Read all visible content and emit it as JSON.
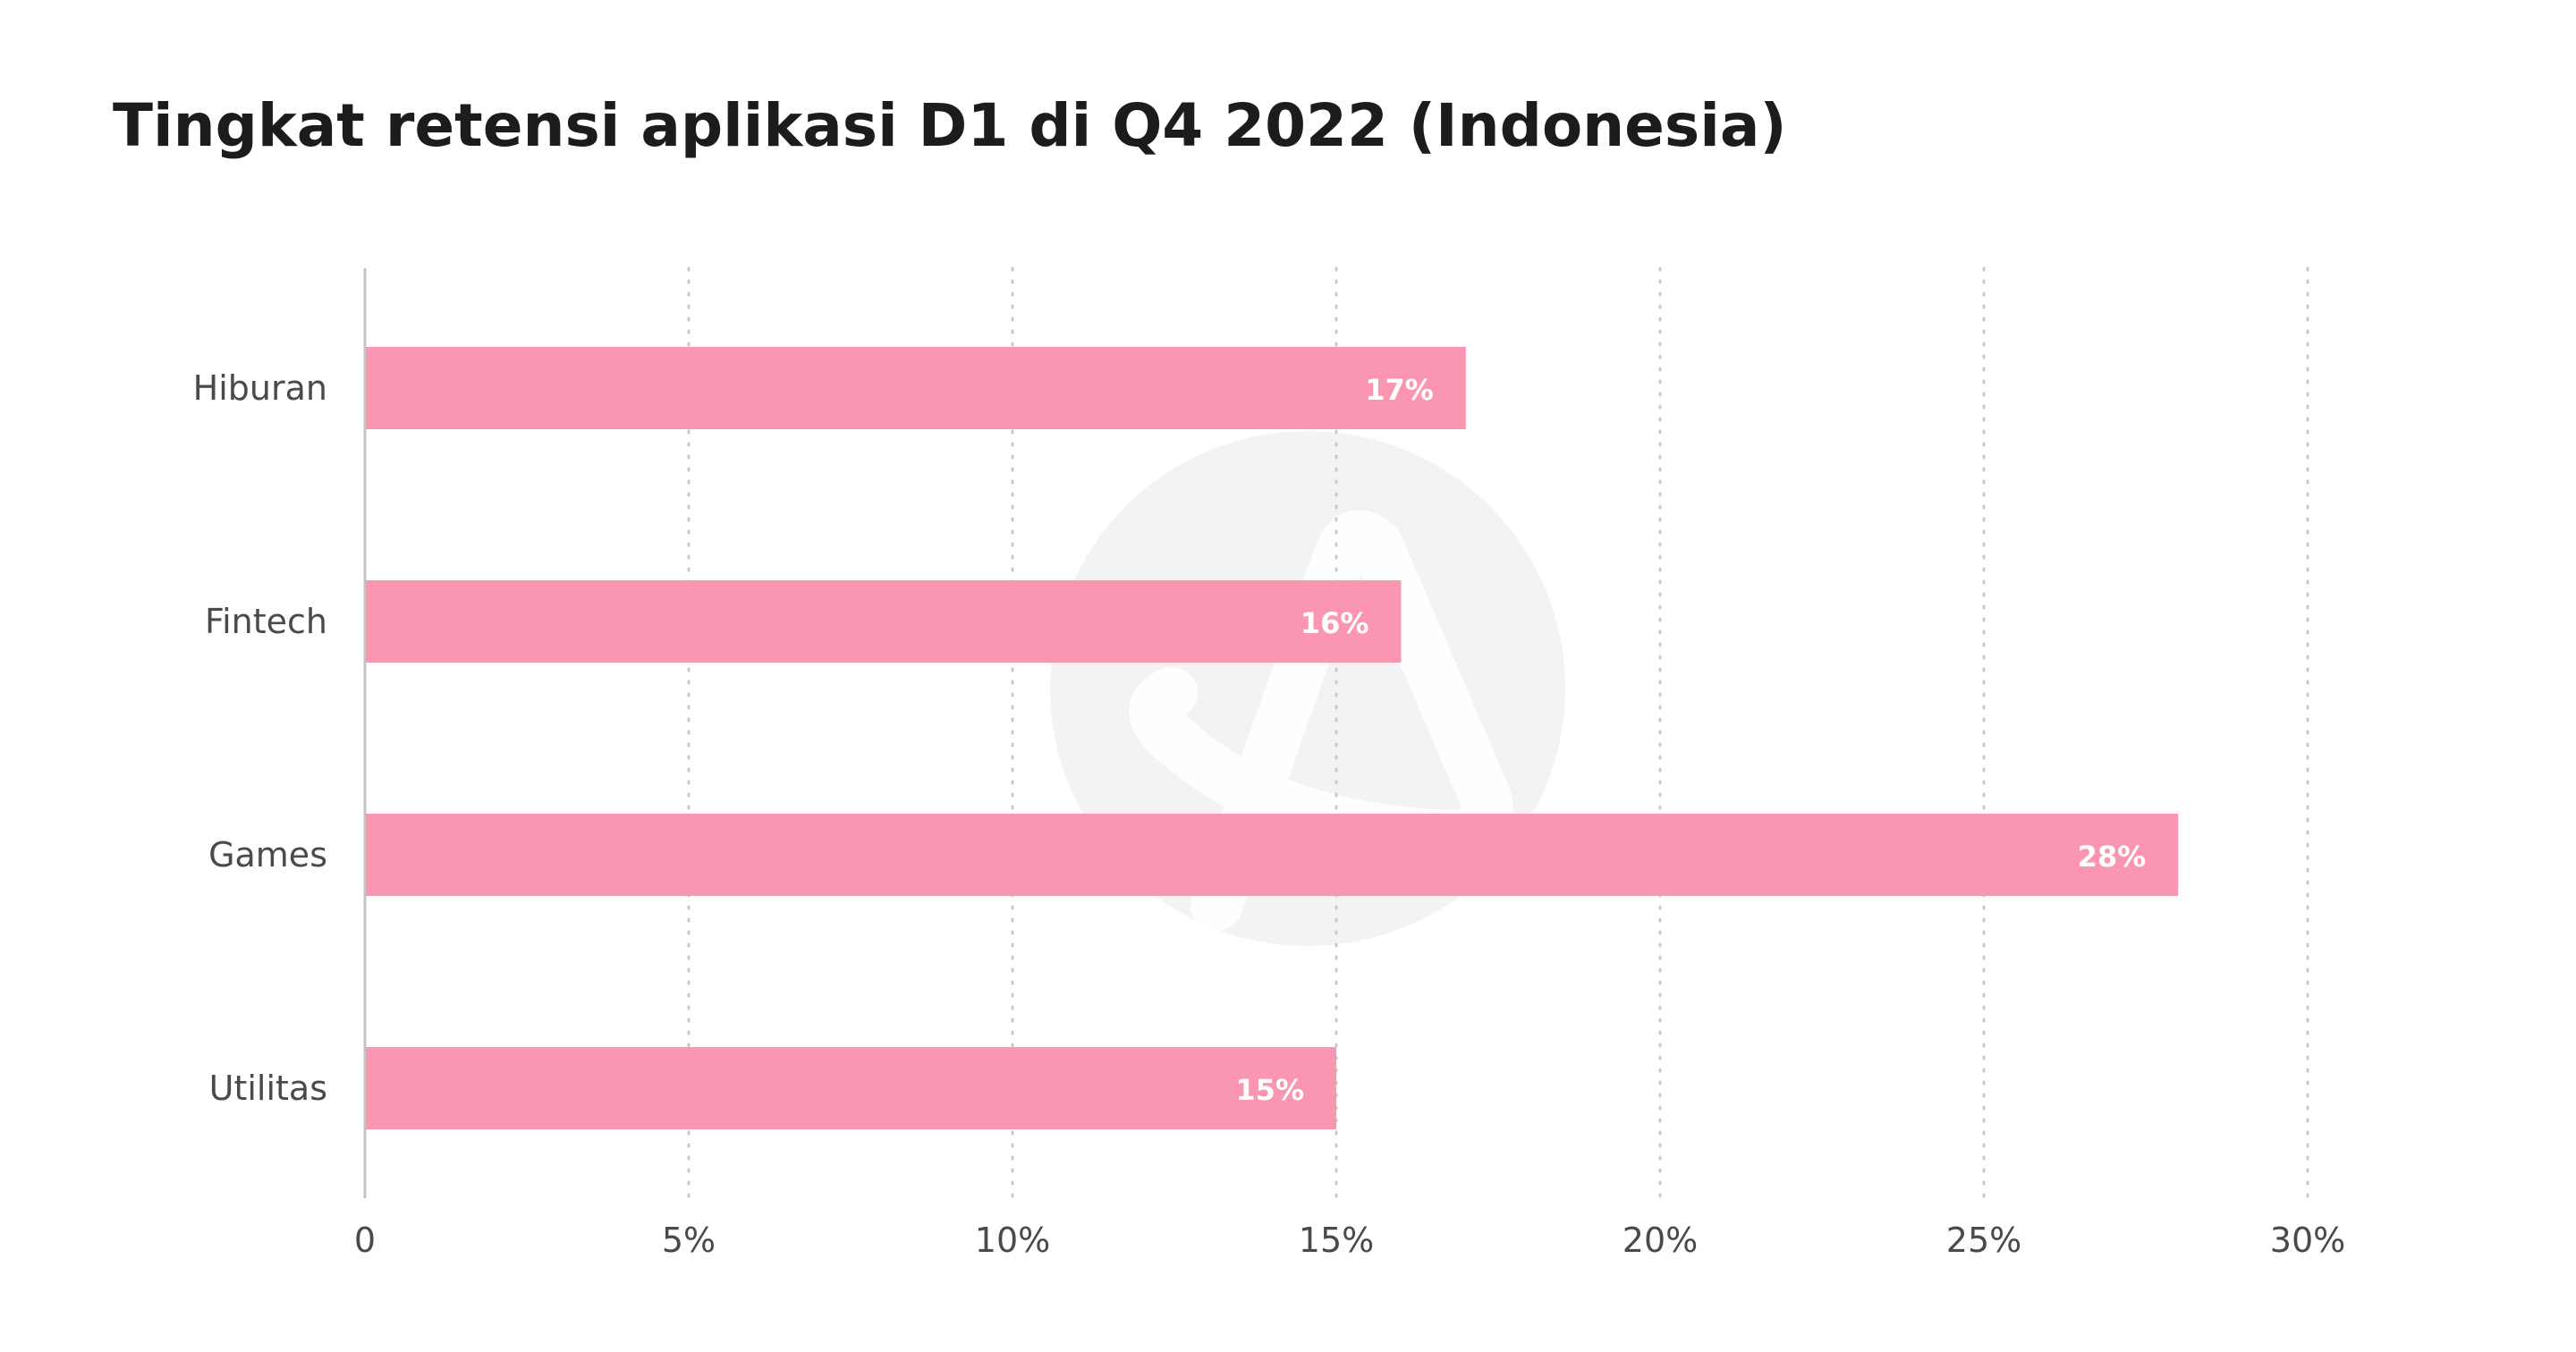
{
  "title": "Tingkat retensi aplikasi D1 di Q4 2022 (Indonesia)",
  "colors": {
    "bar": "#fa96b2",
    "grid": "#c9c9c9",
    "axis": "#c4c4c4",
    "watermark": "#f3f3f3"
  },
  "watermark_icon": "logo-watermark-icon",
  "chart_data": {
    "type": "bar",
    "orientation": "horizontal",
    "title": "Tingkat retensi aplikasi D1 di Q4 2022 (Indonesia)",
    "xlabel": "",
    "ylabel": "",
    "categories": [
      "Hiburan",
      "Fintech",
      "Games",
      "Utilitas"
    ],
    "values": [
      17,
      16,
      28,
      15
    ],
    "value_labels": [
      "17%",
      "16%",
      "28%",
      "15%"
    ],
    "xlim": [
      0,
      30
    ],
    "ticks": [
      0,
      5,
      10,
      15,
      20,
      25,
      30
    ],
    "tick_labels": [
      "0",
      "5%",
      "10%",
      "15%",
      "20%",
      "25%",
      "30%"
    ],
    "grid": "vertical-dotted",
    "legend": "none"
  }
}
